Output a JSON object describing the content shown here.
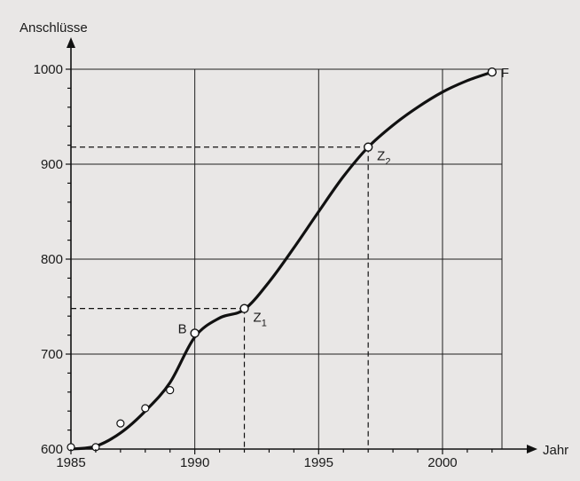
{
  "chart_data": {
    "type": "line",
    "xlabel": "Jahr",
    "ylabel": "Anschlüsse",
    "xlim": [
      1985,
      2002.4
    ],
    "ylim": [
      600,
      1000
    ],
    "x_ticks": [
      1985,
      1990,
      1995,
      2000
    ],
    "y_ticks": [
      600,
      700,
      800,
      900,
      1000
    ],
    "grid": true,
    "curve": {
      "x": [
        1985,
        1986,
        1987,
        1988,
        1989,
        1990,
        1991,
        1992,
        1993,
        1994,
        1995,
        1996,
        1997,
        1998,
        1999,
        2000,
        2001,
        2002
      ],
      "y": [
        600,
        603,
        617,
        640,
        670,
        718,
        738,
        747,
        776,
        812,
        850,
        887,
        918,
        941,
        960,
        976,
        988,
        997
      ]
    },
    "measurements": {
      "x": [
        1985,
        1986,
        1987,
        1988,
        1989,
        1990
      ],
      "y": [
        602,
        602,
        627,
        643,
        662,
        722
      ]
    },
    "labeled_points": [
      {
        "label": "B",
        "sub": "",
        "x": 1990,
        "y": 722,
        "guides": false
      },
      {
        "label": "Z",
        "sub": "1",
        "x": 1992,
        "y": 748,
        "guides": true
      },
      {
        "label": "Z",
        "sub": "2",
        "x": 1997,
        "y": 918,
        "guides": true
      },
      {
        "label": "F",
        "sub": "",
        "x": 2002,
        "y": 997,
        "guides": false
      }
    ]
  },
  "colors": {
    "background": "#e9e7e6",
    "grid": "#1f1f1f",
    "curve": "#111111",
    "marker_fill": "#ffffff"
  }
}
